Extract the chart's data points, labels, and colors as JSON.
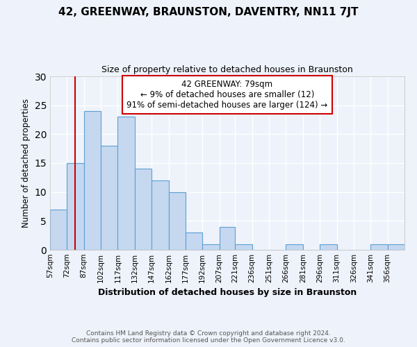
{
  "title": "42, GREENWAY, BRAUNSTON, DAVENTRY, NN11 7JT",
  "subtitle": "Size of property relative to detached houses in Braunston",
  "xlabel": "Distribution of detached houses by size in Braunston",
  "ylabel": "Number of detached properties",
  "bin_labels": [
    "57sqm",
    "72sqm",
    "87sqm",
    "102sqm",
    "117sqm",
    "132sqm",
    "147sqm",
    "162sqm",
    "177sqm",
    "192sqm",
    "207sqm",
    "221sqm",
    "236sqm",
    "251sqm",
    "266sqm",
    "281sqm",
    "296sqm",
    "311sqm",
    "326sqm",
    "341sqm",
    "356sqm"
  ],
  "bin_values": [
    7,
    15,
    24,
    18,
    23,
    14,
    12,
    10,
    3,
    1,
    4,
    1,
    0,
    0,
    1,
    0,
    1,
    0,
    0,
    1,
    1
  ],
  "bar_color": "#c5d8f0",
  "bar_edge_color": "#5a9fd4",
  "annotation_box_text": "42 GREENWAY: 79sqm\n← 9% of detached houses are smaller (12)\n91% of semi-detached houses are larger (124) →",
  "annotation_box_color": "#ffffff",
  "annotation_box_edge_color": "#cc0000",
  "vline_x": 79,
  "vline_color": "#cc0000",
  "bin_edges": [
    57,
    72,
    87,
    102,
    117,
    132,
    147,
    162,
    177,
    192,
    207,
    221,
    236,
    251,
    266,
    281,
    296,
    311,
    326,
    341,
    356,
    371
  ],
  "ylim": [
    0,
    30
  ],
  "yticks": [
    0,
    5,
    10,
    15,
    20,
    25,
    30
  ],
  "background_color": "#eef2fa",
  "grid_color": "#ffffff",
  "footer_line1": "Contains HM Land Registry data © Crown copyright and database right 2024.",
  "footer_line2": "Contains public sector information licensed under the Open Government Licence v3.0."
}
